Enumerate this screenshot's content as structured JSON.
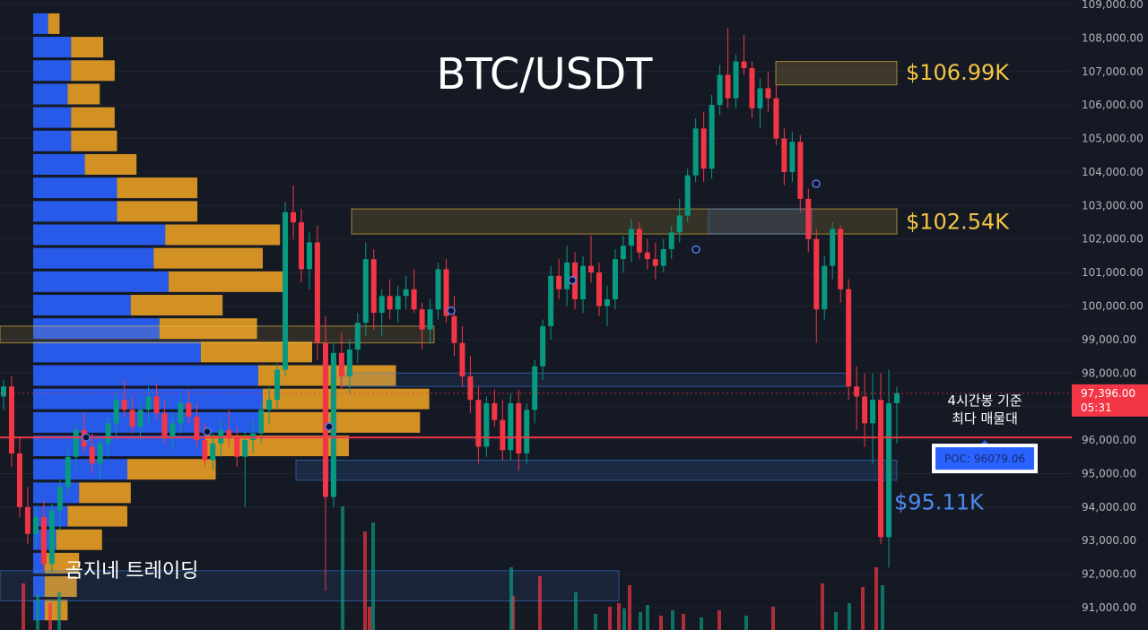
{
  "chart_data": {
    "type": "candlestick",
    "title": "BTC/USDT",
    "ylim": [
      90700,
      109000
    ],
    "y_ticks": [
      "109,000.00",
      "108,000.00",
      "107,000.00",
      "106,000.00",
      "105,000.00",
      "104,000.00",
      "103,000.00",
      "102,000.00",
      "101,000.00",
      "100,000.00",
      "99,000.00",
      "98,000.00",
      "97,000.00",
      "96,000.00",
      "95,000.00",
      "94,000.00",
      "93,000.00",
      "92,000.00",
      "91,000.00"
    ],
    "current_price": {
      "label": "97,396.00",
      "countdown": "05:31",
      "value": 97396,
      "color": "#f23645"
    },
    "poc": {
      "label": "POC: 96079.06",
      "value": 96079.06,
      "color": "#f23645"
    },
    "levels": [
      {
        "label": "$106.99K",
        "value": 106990,
        "zone": [
          106600,
          107300
        ],
        "color": "#f5c542"
      },
      {
        "label": "$102.54K",
        "value": 102540,
        "zone": [
          102150,
          102900
        ],
        "color": "#f5c542"
      },
      {
        "label": "$95.11K",
        "value": 95110,
        "zone": [
          94800,
          95400
        ],
        "color": "#4d8af0"
      }
    ],
    "annotation": [
      "4시간봉 기준",
      "최다 매물대"
    ],
    "brand": "곰지네 트레이딩",
    "colors": {
      "up": "#089981",
      "down": "#f23645",
      "buy_volume": "#2962ff",
      "sell_volume": "#f5a623"
    },
    "candles_ohlc": [
      [
        97300,
        97800,
        96900,
        97600
      ],
      [
        97600,
        97900,
        95200,
        95600
      ],
      [
        95600,
        96100,
        93700,
        94000
      ],
      [
        94000,
        94600,
        92900,
        93200
      ],
      [
        93200,
        94000,
        92800,
        93700
      ],
      [
        93700,
        94200,
        92100,
        92300
      ],
      [
        92300,
        94100,
        92000,
        93900
      ],
      [
        93900,
        94800,
        93300,
        94600
      ],
      [
        94600,
        95800,
        94400,
        95500
      ],
      [
        95500,
        96500,
        95100,
        96300
      ],
      [
        96300,
        96800,
        95600,
        95800
      ],
      [
        95800,
        96200,
        95000,
        95300
      ],
      [
        95300,
        96100,
        94800,
        95900
      ],
      [
        95900,
        96700,
        95500,
        96500
      ],
      [
        96500,
        97400,
        96100,
        97200
      ],
      [
        97200,
        97800,
        96700,
        96900
      ],
      [
        96900,
        97300,
        96200,
        96400
      ],
      [
        96400,
        97100,
        96000,
        96900
      ],
      [
        96900,
        97600,
        96500,
        97300
      ],
      [
        97300,
        97700,
        96600,
        96800
      ],
      [
        96800,
        97200,
        95900,
        96100
      ],
      [
        96100,
        96800,
        95700,
        96500
      ],
      [
        96500,
        97300,
        96200,
        97100
      ],
      [
        97100,
        97500,
        96500,
        96700
      ],
      [
        96700,
        97100,
        95800,
        96000
      ],
      [
        96000,
        96500,
        95200,
        95400
      ],
      [
        95400,
        96200,
        95100,
        95900
      ],
      [
        95900,
        96600,
        95500,
        96300
      ],
      [
        96300,
        96900,
        95800,
        96100
      ],
      [
        96100,
        96400,
        95200,
        95500
      ],
      [
        95500,
        96300,
        94000,
        96000
      ],
      [
        96000,
        96600,
        95600,
        96200
      ],
      [
        96200,
        97100,
        95900,
        96900
      ],
      [
        96900,
        97600,
        96500,
        97200
      ],
      [
        97200,
        98300,
        96900,
        98100
      ],
      [
        98100,
        103100,
        97900,
        102800
      ],
      [
        102800,
        103600,
        102000,
        102500
      ],
      [
        102500,
        102900,
        100700,
        101100
      ],
      [
        101100,
        102200,
        100500,
        101900
      ],
      [
        101900,
        102400,
        98400,
        98900
      ],
      [
        98900,
        99700,
        91500,
        94300
      ],
      [
        94300,
        98900,
        94000,
        98600
      ],
      [
        98600,
        99200,
        97500,
        97900
      ],
      [
        97900,
        99000,
        97400,
        98700
      ],
      [
        98700,
        99800,
        98300,
        99500
      ],
      [
        99500,
        101900,
        99100,
        101400
      ],
      [
        101400,
        101700,
        99300,
        99800
      ],
      [
        99800,
        100500,
        99100,
        100300
      ],
      [
        100300,
        100800,
        99600,
        99900
      ],
      [
        99900,
        100600,
        99500,
        100300
      ],
      [
        100300,
        100900,
        99900,
        100500
      ],
      [
        100500,
        101100,
        99800,
        99900
      ],
      [
        99900,
        100100,
        98700,
        99300
      ],
      [
        99300,
        100200,
        98900,
        99900
      ],
      [
        99900,
        101300,
        99600,
        101100
      ],
      [
        101100,
        101400,
        99500,
        99700
      ],
      [
        99700,
        100300,
        98500,
        98900
      ],
      [
        98900,
        99400,
        97600,
        97900
      ],
      [
        97900,
        98500,
        96800,
        97200
      ],
      [
        97200,
        97600,
        95300,
        95800
      ],
      [
        95800,
        97300,
        95500,
        97100
      ],
      [
        97100,
        97500,
        96400,
        96600
      ],
      [
        96600,
        97200,
        95400,
        95700
      ],
      [
        95700,
        97400,
        95400,
        97100
      ],
      [
        97100,
        97500,
        95100,
        95600
      ],
      [
        95600,
        97100,
        95300,
        96900
      ],
      [
        96900,
        98400,
        96500,
        98200
      ],
      [
        98200,
        99600,
        97800,
        99400
      ],
      [
        99400,
        101200,
        99000,
        100900
      ],
      [
        100900,
        101400,
        100200,
        100500
      ],
      [
        100500,
        101800,
        100000,
        101300
      ],
      [
        101300,
        101600,
        99900,
        100200
      ],
      [
        100200,
        101500,
        99800,
        101200
      ],
      [
        101200,
        102100,
        100700,
        101000
      ],
      [
        101000,
        101300,
        99700,
        100000
      ],
      [
        100000,
        100600,
        99400,
        100200
      ],
      [
        100200,
        101700,
        99900,
        101400
      ],
      [
        101400,
        102100,
        101000,
        101800
      ],
      [
        101800,
        102600,
        101300,
        102300
      ],
      [
        102300,
        102500,
        101400,
        101600
      ],
      [
        101600,
        102000,
        101100,
        101400
      ],
      [
        101400,
        101900,
        100800,
        101200
      ],
      [
        101200,
        102000,
        101000,
        101700
      ],
      [
        101700,
        102400,
        101400,
        102200
      ],
      [
        102200,
        103200,
        101900,
        102700
      ],
      [
        102700,
        104100,
        102500,
        103900
      ],
      [
        103900,
        105600,
        103700,
        105300
      ],
      [
        105300,
        105800,
        103700,
        104100
      ],
      [
        104100,
        106300,
        103800,
        106000
      ],
      [
        106000,
        107200,
        105700,
        106900
      ],
      [
        106900,
        108300,
        105900,
        106200
      ],
      [
        106200,
        107500,
        105900,
        107300
      ],
      [
        107300,
        108100,
        106900,
        107100
      ],
      [
        107100,
        107300,
        105600,
        105900
      ],
      [
        105900,
        106800,
        105300,
        106500
      ],
      [
        106500,
        107000,
        105800,
        106200
      ],
      [
        106200,
        106600,
        104800,
        105000
      ],
      [
        105000,
        105300,
        103600,
        104000
      ],
      [
        104000,
        105200,
        103700,
        104900
      ],
      [
        104900,
        105100,
        102800,
        103200
      ],
      [
        103200,
        103500,
        101600,
        102000
      ],
      [
        102000,
        102300,
        98900,
        99900
      ],
      [
        99900,
        101500,
        99600,
        101200
      ],
      [
        101200,
        102500,
        100800,
        102300
      ],
      [
        102300,
        102400,
        100100,
        100500
      ],
      [
        100500,
        100800,
        97200,
        97600
      ],
      [
        97600,
        98200,
        96300,
        97300
      ],
      [
        97300,
        98000,
        95800,
        96500
      ],
      [
        96500,
        98000,
        95300,
        97200
      ],
      [
        97200,
        98000,
        92900,
        93100
      ],
      [
        93100,
        98100,
        92200,
        97100
      ],
      [
        97100,
        97600,
        95900,
        97400
      ]
    ],
    "volume_bars": [
      [
        410,
        26,
        "#f23645"
      ],
      [
        470,
        0,
        "#f23645"
      ],
      [
        520,
        0,
        "#089981"
      ],
      [
        570,
        38,
        "#f23645"
      ],
      [
        640,
        42,
        "#089981"
      ],
      [
        662,
        18,
        "#089981"
      ],
      [
        678,
        26,
        "#f23645"
      ],
      [
        688,
        30,
        "#f23645"
      ],
      [
        694,
        24,
        "#089981"
      ],
      [
        700,
        50,
        "#f23645"
      ],
      [
        712,
        20,
        "#089981"
      ],
      [
        720,
        28,
        "#089981"
      ],
      [
        735,
        16,
        "#f23645"
      ],
      [
        748,
        22,
        "#089981"
      ],
      [
        760,
        18,
        "#f23645"
      ],
      [
        780,
        14,
        "#089981"
      ],
      [
        800,
        22,
        "#f23645"
      ],
      [
        830,
        16,
        "#089981"
      ],
      [
        860,
        26,
        "#f23645"
      ],
      [
        915,
        52,
        "#f23645"
      ],
      [
        930,
        20,
        "#089981"
      ],
      [
        945,
        30,
        "#089981"
      ],
      [
        960,
        48,
        "#f23645"
      ],
      [
        975,
        70,
        "#f23645"
      ],
      [
        982,
        50,
        "#089981"
      ],
      [
        380,
        138,
        "#089981"
      ],
      [
        405,
        110,
        "#f23645"
      ],
      [
        414,
        120,
        "#089981"
      ],
      [
        568,
        70,
        "#089981"
      ],
      [
        600,
        60,
        "#f23645"
      ],
      [
        24,
        52,
        "#f23645"
      ],
      [
        40,
        40,
        "#089981"
      ],
      [
        54,
        30,
        "#f23645"
      ],
      [
        64,
        42,
        "#089981"
      ]
    ],
    "volume_profile": [
      [
        108400,
        0.013,
        0.01
      ],
      [
        107700,
        0.033,
        0.028
      ],
      [
        107000,
        0.033,
        0.038
      ],
      [
        106300,
        0.03,
        0.028
      ],
      [
        105600,
        0.033,
        0.038
      ],
      [
        104900,
        0.033,
        0.04
      ],
      [
        104200,
        0.045,
        0.045
      ],
      [
        103500,
        0.073,
        0.07
      ],
      [
        102800,
        0.073,
        0.07
      ],
      [
        102100,
        0.115,
        0.1
      ],
      [
        101400,
        0.105,
        0.095
      ],
      [
        100700,
        0.118,
        0.1
      ],
      [
        100000,
        0.085,
        0.08
      ],
      [
        99300,
        0.11,
        0.085
      ],
      [
        98600,
        0.146,
        0.097
      ],
      [
        97900,
        0.196,
        0.12
      ],
      [
        97200,
        0.2,
        0.145
      ],
      [
        96500,
        0.197,
        0.14
      ],
      [
        95800,
        0.15,
        0.125
      ],
      [
        95100,
        0.082,
        0.077
      ],
      [
        94400,
        0.04,
        0.045
      ],
      [
        93700,
        0.03,
        0.052
      ],
      [
        93000,
        0.02,
        0.04
      ],
      [
        92300,
        0.01,
        0.03
      ],
      [
        91600,
        0.01,
        0.028
      ],
      [
        90900,
        0.01,
        0.02
      ]
    ]
  }
}
